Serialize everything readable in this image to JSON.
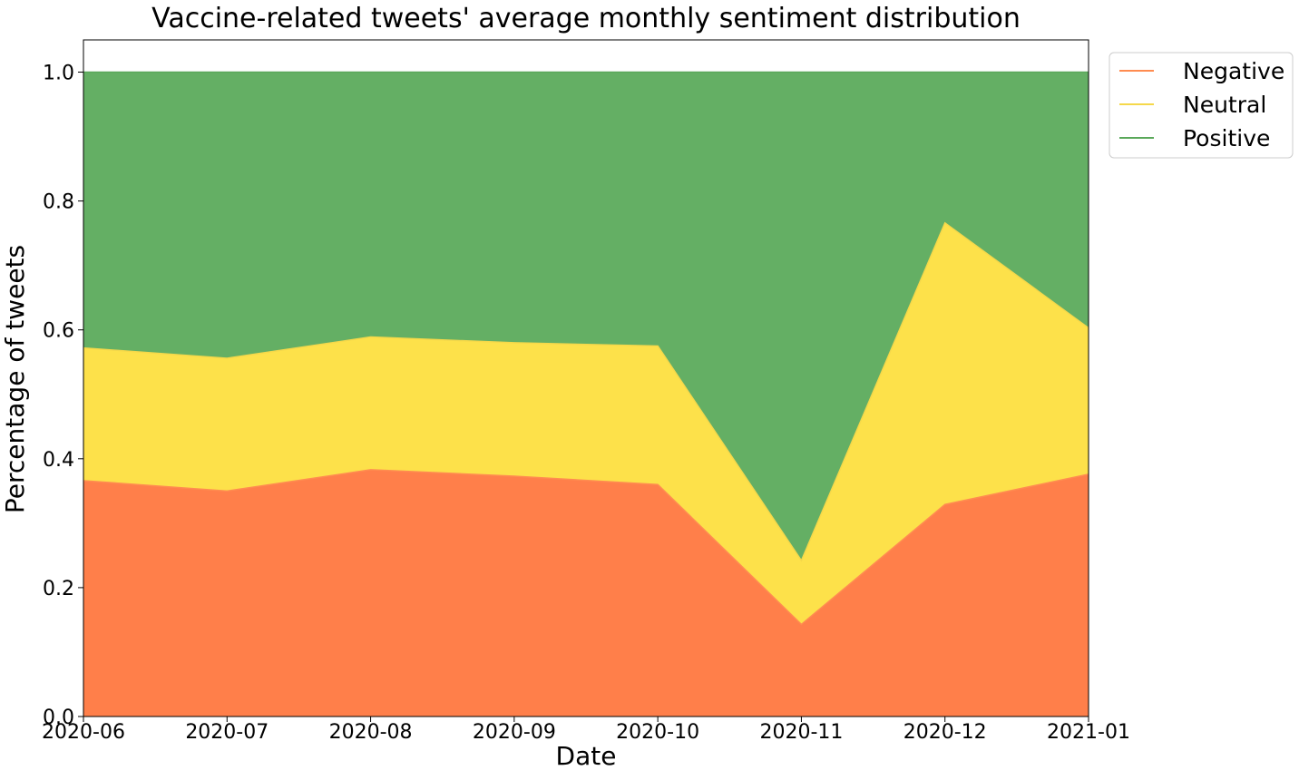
{
  "chart_data": {
    "type": "area",
    "stacked": true,
    "title": "Vaccine-related tweets' average monthly sentiment distribution",
    "xlabel": "Date",
    "ylabel": "Percentage of tweets",
    "x": [
      "2020-06",
      "2020-07",
      "2020-08",
      "2020-09",
      "2020-10",
      "2020-11",
      "2020-12",
      "2021-01"
    ],
    "ylim": [
      0,
      1.05
    ],
    "yticks": [
      "0.0",
      "0.2",
      "0.4",
      "0.6",
      "0.8",
      "1.0"
    ],
    "grid": false,
    "legend_position": "upper right outside",
    "series": [
      {
        "name": "Negative",
        "color": "#ff7f4a",
        "line_color": "#ff8c50",
        "values": [
          0.366,
          0.35,
          0.383,
          0.373,
          0.36,
          0.143,
          0.329,
          0.376
        ]
      },
      {
        "name": "Neutral",
        "color": "#fde14a",
        "line_color": "#f5d84a",
        "values": [
          0.206,
          0.206,
          0.206,
          0.207,
          0.215,
          0.099,
          0.437,
          0.227
        ]
      },
      {
        "name": "Positive",
        "color": "#64af64",
        "line_color": "#5aa85a",
        "values": [
          0.428,
          0.444,
          0.411,
          0.42,
          0.425,
          0.758,
          0.234,
          0.397
        ]
      }
    ]
  }
}
